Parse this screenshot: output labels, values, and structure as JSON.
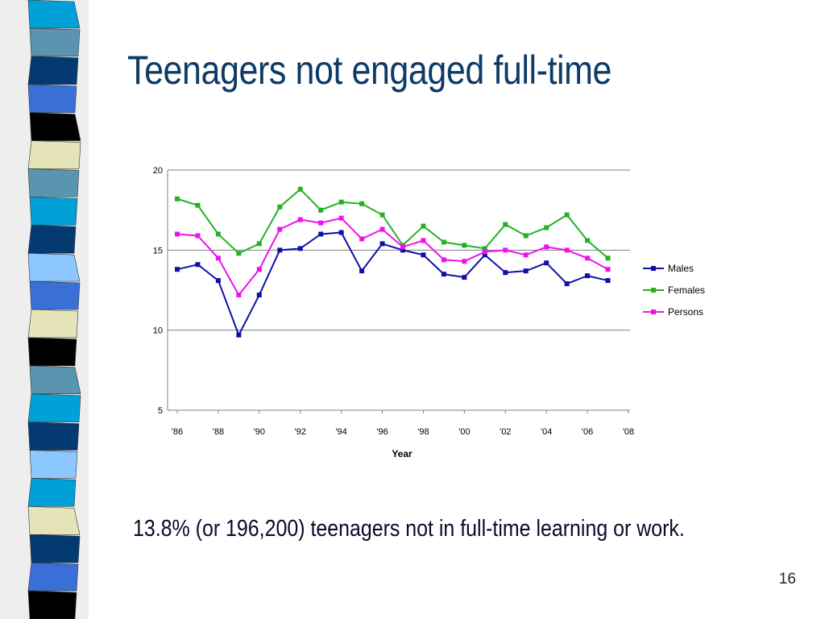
{
  "slide": {
    "title": "Teenagers not engaged full-time",
    "body_text": "13.8% (or 196,200) teenagers not in full-time learning or work.",
    "page_number": "16"
  },
  "colors": {
    "title": "#0d3b66",
    "males": "#1010a8",
    "females": "#22b322",
    "persons": "#ee11ee",
    "stripes": [
      "#00a0d8",
      "#5b94ae",
      "#043a72",
      "#3a6fd8",
      "#000000",
      "#e4e4b8",
      "#8cc8ff"
    ]
  },
  "chart_data": {
    "type": "line",
    "title": "",
    "xlabel": "Year",
    "ylabel": "",
    "x_range": [
      1986,
      2008
    ],
    "ylim": [
      5,
      20
    ],
    "yticks": [
      5,
      10,
      15,
      20
    ],
    "xtick_labels": [
      "'86",
      "'88",
      "'90",
      "'92",
      "'94",
      "'96",
      "'98",
      "'00",
      "'02",
      "'04",
      "'06",
      "'08"
    ],
    "grid": "horizontal",
    "legend_position": "right",
    "x": [
      1986,
      1987,
      1988,
      1989,
      1990,
      1991,
      1992,
      1993,
      1994,
      1995,
      1996,
      1997,
      1998,
      1999,
      2000,
      2001,
      2002,
      2003,
      2004,
      2005,
      2006,
      2007
    ],
    "series": [
      {
        "name": "Males",
        "color": "#1010a8",
        "values": [
          13.8,
          14.1,
          13.1,
          9.7,
          12.2,
          15.0,
          15.1,
          16.0,
          16.1,
          13.7,
          15.4,
          15.0,
          14.7,
          13.5,
          13.3,
          14.7,
          13.6,
          13.7,
          14.2,
          12.9,
          13.4,
          13.1
        ]
      },
      {
        "name": "Females",
        "color": "#22b322",
        "values": [
          18.2,
          17.8,
          16.0,
          14.8,
          15.4,
          17.7,
          18.8,
          17.5,
          18.0,
          17.9,
          17.2,
          15.3,
          16.5,
          15.5,
          15.3,
          15.1,
          16.6,
          15.9,
          16.4,
          17.2,
          15.6,
          14.5
        ]
      },
      {
        "name": "Persons",
        "color": "#ee11ee",
        "values": [
          16.0,
          15.9,
          14.5,
          12.2,
          13.8,
          16.3,
          16.9,
          16.7,
          17.0,
          15.7,
          16.3,
          15.2,
          15.6,
          14.4,
          14.3,
          14.9,
          15.0,
          14.7,
          15.2,
          15.0,
          14.5,
          13.8
        ]
      }
    ]
  }
}
